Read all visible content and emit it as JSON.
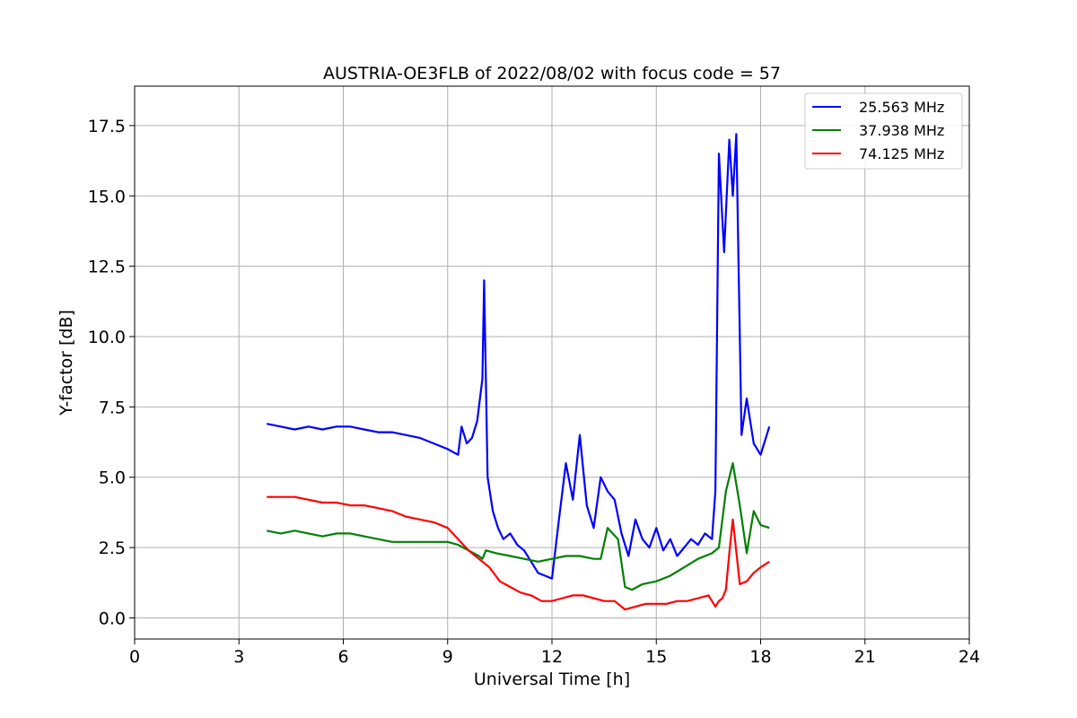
{
  "chart_data": {
    "type": "line",
    "title": "AUSTRIA-OE3FLB of 2022/08/02 with focus code = 57",
    "xlabel": "Universal Time [h]",
    "ylabel": "Y-factor [dB]",
    "xlim": [
      0,
      24
    ],
    "ylim": [
      -0.75,
      18.9
    ],
    "xticks": [
      0,
      3,
      6,
      9,
      12,
      15,
      18,
      21,
      24
    ],
    "xtick_labels": [
      "0",
      "3",
      "6",
      "9",
      "12",
      "15",
      "18",
      "21",
      "24"
    ],
    "yticks": [
      0,
      2.5,
      5,
      7.5,
      10,
      12.5,
      15,
      17.5
    ],
    "ytick_labels": [
      "0.0",
      "2.5",
      "5.0",
      "7.5",
      "10.0",
      "12.5",
      "15.0",
      "17.5"
    ],
    "grid": true,
    "legend_position": "top-right",
    "series": [
      {
        "name": "25.563 MHz",
        "color": "#0000ff",
        "x": [
          3.8,
          4.2,
          4.6,
          5.0,
          5.4,
          5.8,
          6.2,
          6.6,
          7.0,
          7.4,
          7.8,
          8.2,
          8.6,
          9.0,
          9.3,
          9.4,
          9.55,
          9.7,
          9.85,
          10.0,
          10.05,
          10.15,
          10.3,
          10.45,
          10.6,
          10.8,
          11.0,
          11.2,
          11.4,
          11.6,
          11.8,
          12.0,
          12.2,
          12.4,
          12.6,
          12.8,
          13.0,
          13.2,
          13.4,
          13.6,
          13.8,
          14.0,
          14.2,
          14.4,
          14.6,
          14.8,
          15.0,
          15.2,
          15.4,
          15.6,
          15.8,
          16.0,
          16.2,
          16.4,
          16.6,
          16.7,
          16.8,
          16.95,
          17.1,
          17.2,
          17.3,
          17.45,
          17.6,
          17.8,
          18.0,
          18.25
        ],
        "y": [
          6.9,
          6.8,
          6.7,
          6.8,
          6.7,
          6.8,
          6.8,
          6.7,
          6.6,
          6.6,
          6.5,
          6.4,
          6.2,
          6.0,
          5.8,
          6.8,
          6.2,
          6.4,
          7.0,
          8.5,
          12.0,
          5.0,
          3.8,
          3.2,
          2.8,
          3.0,
          2.6,
          2.4,
          2.0,
          1.6,
          1.5,
          1.4,
          3.5,
          5.5,
          4.2,
          6.5,
          4.0,
          3.2,
          5.0,
          4.5,
          4.2,
          3.0,
          2.2,
          3.5,
          2.8,
          2.5,
          3.2,
          2.4,
          2.8,
          2.2,
          2.5,
          2.8,
          2.6,
          3.0,
          2.8,
          4.5,
          16.5,
          13.0,
          17.0,
          15.0,
          17.2,
          6.5,
          7.8,
          6.2,
          5.8,
          6.8
        ]
      },
      {
        "name": "37.938 MHz",
        "color": "#008000",
        "x": [
          3.8,
          4.2,
          4.6,
          5.0,
          5.4,
          5.8,
          6.2,
          6.6,
          7.0,
          7.4,
          7.8,
          8.2,
          8.6,
          9.0,
          9.3,
          9.6,
          9.9,
          10.0,
          10.1,
          10.4,
          10.8,
          11.2,
          11.6,
          12.0,
          12.4,
          12.8,
          13.2,
          13.4,
          13.6,
          13.9,
          14.1,
          14.3,
          14.6,
          15.0,
          15.4,
          15.8,
          16.2,
          16.6,
          16.8,
          17.0,
          17.2,
          17.4,
          17.6,
          17.8,
          18.0,
          18.25
        ],
        "y": [
          3.1,
          3.0,
          3.1,
          3.0,
          2.9,
          3.0,
          3.0,
          2.9,
          2.8,
          2.7,
          2.7,
          2.7,
          2.7,
          2.7,
          2.6,
          2.4,
          2.2,
          2.1,
          2.4,
          2.3,
          2.2,
          2.1,
          2.0,
          2.1,
          2.2,
          2.2,
          2.1,
          2.1,
          3.2,
          2.8,
          1.1,
          1.0,
          1.2,
          1.3,
          1.5,
          1.8,
          2.1,
          2.3,
          2.5,
          4.5,
          5.5,
          4.0,
          2.3,
          3.8,
          3.3,
          3.2
        ]
      },
      {
        "name": "74.125 MHz",
        "color": "#ff0000",
        "x": [
          3.8,
          4.2,
          4.6,
          5.0,
          5.4,
          5.8,
          6.2,
          6.6,
          7.0,
          7.4,
          7.8,
          8.2,
          8.6,
          9.0,
          9.3,
          9.6,
          9.9,
          10.2,
          10.5,
          10.8,
          11.1,
          11.4,
          11.7,
          12.0,
          12.3,
          12.6,
          12.9,
          13.2,
          13.5,
          13.8,
          14.1,
          14.4,
          14.7,
          15.0,
          15.3,
          15.6,
          15.9,
          16.2,
          16.5,
          16.7,
          16.8,
          16.9,
          17.0,
          17.1,
          17.2,
          17.4,
          17.6,
          17.8,
          18.0,
          18.25
        ],
        "y": [
          4.3,
          4.3,
          4.3,
          4.2,
          4.1,
          4.1,
          4.0,
          4.0,
          3.9,
          3.8,
          3.6,
          3.5,
          3.4,
          3.2,
          2.8,
          2.4,
          2.1,
          1.8,
          1.3,
          1.1,
          0.9,
          0.8,
          0.6,
          0.6,
          0.7,
          0.8,
          0.8,
          0.7,
          0.6,
          0.6,
          0.3,
          0.4,
          0.5,
          0.5,
          0.5,
          0.6,
          0.6,
          0.7,
          0.8,
          0.4,
          0.6,
          0.7,
          1.0,
          2.3,
          3.5,
          1.2,
          1.3,
          1.6,
          1.8,
          2.0
        ]
      }
    ]
  }
}
